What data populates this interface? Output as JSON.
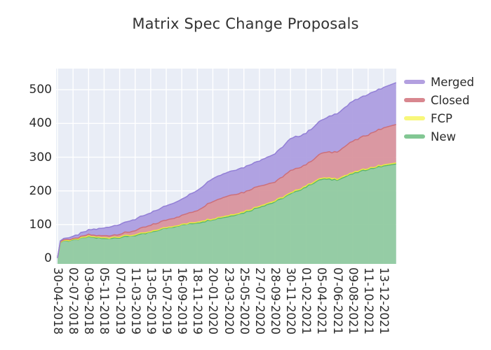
{
  "title": "Matrix Spec Change Proposals",
  "chart_data": {
    "type": "area",
    "stacked": true,
    "title": "Matrix Spec Change Proposals",
    "xlabel": "",
    "ylabel": "",
    "ylim": [
      0,
      560
    ],
    "grid": true,
    "plot_bg": "#e9edf6",
    "grid_color": "#ffffff",
    "legend_position": "right-outside",
    "y_ticks": [
      0,
      100,
      200,
      300,
      400,
      500
    ],
    "x_tick_labels": [
      "30-04-2018",
      "02-07-2018",
      "03-09-2018",
      "05-11-2018",
      "07-01-2019",
      "11-03-2019",
      "13-05-2019",
      "15-07-2019",
      "16-09-2019",
      "18-11-2019",
      "20-01-2020",
      "23-03-2020",
      "25-05-2020",
      "27-07-2020",
      "28-09-2020",
      "30-11-2020",
      "01-02-2021",
      "05-04-2021",
      "07-06-2021",
      "09-08-2021",
      "11-10-2021",
      "13-12-2021"
    ],
    "x": [
      0,
      0.18,
      0.4,
      1,
      2,
      3,
      4,
      5,
      6,
      7,
      8,
      9,
      10,
      11,
      12,
      13,
      14,
      15,
      16,
      17,
      18,
      19,
      20,
      21,
      21.8
    ],
    "series": [
      {
        "name": "New",
        "line_color": "#5bb56d",
        "fill_color": "#8dc99d",
        "values": [
          1,
          46,
          52,
          53,
          64,
          58,
          62,
          68,
          76,
          90,
          98,
          105,
          115,
          124,
          135,
          152,
          167,
          190,
          212,
          235,
          233,
          250,
          264,
          274,
          280
        ]
      },
      {
        "name": "FCP",
        "line_color": "#e9e93f",
        "fill_color": "#f6f47b",
        "values": [
          0,
          1,
          1,
          1,
          2,
          2,
          2,
          2,
          2,
          2,
          2,
          3,
          3,
          3,
          3,
          3,
          3,
          3,
          3,
          3,
          3,
          3,
          3,
          3,
          3
        ]
      },
      {
        "name": "Closed",
        "line_color": "#cc6f7a",
        "fill_color": "#d8909a",
        "values": [
          0,
          2,
          2,
          3,
          4,
          6,
          8,
          12,
          20,
          21,
          27,
          34,
          52,
          59,
          58,
          60,
          56,
          66,
          63,
          74,
          80,
          94,
          100,
          110,
          114
        ]
      },
      {
        "name": "Merged",
        "line_color": "#927fd6",
        "fill_color": "#aa9be0",
        "values": [
          0,
          3,
          4,
          7,
          14,
          24,
          29,
          34,
          36,
          43,
          48,
          60,
          68,
          71,
          74,
          75,
          84,
          95,
          93,
          98,
          114,
          118,
          120,
          120,
          124
        ]
      }
    ],
    "legend": [
      {
        "label": "Merged",
        "color": "#b3a0e0"
      },
      {
        "label": "Closed",
        "color": "#d8878f"
      },
      {
        "label": "FCP",
        "color": "#f8f77a"
      },
      {
        "label": "New",
        "color": "#82c793"
      }
    ]
  }
}
